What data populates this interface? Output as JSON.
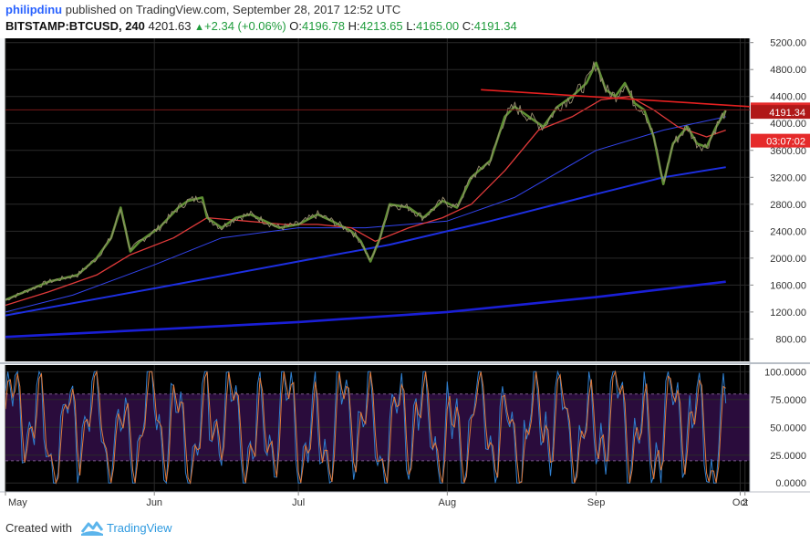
{
  "header": {
    "author": "philipdinu",
    "published_text": "published on TradingView.com, September 28, 2017 12:52 UTC",
    "symbol": "BITSTAMP:BTCUSD, 240",
    "last_price": "4201.63",
    "change": "+2.34 (+0.06%)",
    "o_label": "O:",
    "o_value": "4196.78",
    "h_label": "H:",
    "h_value": "4213.65",
    "l_label": "L:",
    "l_value": "4165.00",
    "c_label": "C:",
    "c_value": "4191.34"
  },
  "footer": {
    "created_with": "Created with",
    "brand": "TradingView"
  },
  "colors": {
    "background": "#000000",
    "grid": "#2a2a2a",
    "price": "#8b9a2e",
    "highlight": "#6fa83c",
    "ema_fast": "#e03a3a",
    "ma_blue_thin": "#3344ee",
    "ma_blue_mid": "#1d2fe0",
    "ma_blue_thick": "#1a1fd6",
    "trendline": "#e52020",
    "stoch_bg": "#2a0c3c",
    "stoch_k": "#2f7fcf",
    "stoch_d": "#e07a3a",
    "tag_red": "#e52a2a"
  },
  "chart_data": [
    {
      "type": "line",
      "panel": "price",
      "x_labels": [
        "May",
        "Jun",
        "Jul",
        "Aug",
        "Sep",
        "Oct",
        "2"
      ],
      "y_ticks": [
        800,
        1200,
        1600,
        2000,
        2400,
        2800,
        3200,
        3600,
        4000,
        4400,
        4800,
        5200
      ],
      "y_tick_labels": [
        "800.00",
        "1200.00",
        "1600.00",
        "2000.00",
        "2400.00",
        "2800.00",
        "3200.00",
        "3600.00",
        "4000.00",
        "4400.00",
        "4800.00",
        "5200.00"
      ],
      "ylim": [
        480,
        5250
      ],
      "x_range": [
        "2017-05-01",
        "2017-10-03"
      ],
      "series": [
        {
          "role": "price",
          "points": [
            [
              "2017-05-01",
              1380
            ],
            [
              "2017-05-05",
              1500
            ],
            [
              "2017-05-10",
              1650
            ],
            [
              "2017-05-13",
              1700
            ],
            [
              "2017-05-16",
              1750
            ],
            [
              "2017-05-20",
              2000
            ],
            [
              "2017-05-23",
              2300
            ],
            [
              "2017-05-25",
              2750
            ],
            [
              "2017-05-27",
              2100
            ],
            [
              "2017-05-29",
              2250
            ],
            [
              "2017-06-02",
              2450
            ],
            [
              "2017-06-06",
              2750
            ],
            [
              "2017-06-08",
              2850
            ],
            [
              "2017-06-11",
              2900
            ],
            [
              "2017-06-12",
              2600
            ],
            [
              "2017-06-15",
              2450
            ],
            [
              "2017-06-18",
              2600
            ],
            [
              "2017-06-21",
              2650
            ],
            [
              "2017-06-24",
              2550
            ],
            [
              "2017-06-27",
              2450
            ],
            [
              "2017-07-01",
              2500
            ],
            [
              "2017-07-05",
              2650
            ],
            [
              "2017-07-08",
              2550
            ],
            [
              "2017-07-12",
              2400
            ],
            [
              "2017-07-14",
              2250
            ],
            [
              "2017-07-16",
              1950
            ],
            [
              "2017-07-18",
              2300
            ],
            [
              "2017-07-20",
              2800
            ],
            [
              "2017-07-24",
              2750
            ],
            [
              "2017-07-27",
              2600
            ],
            [
              "2017-07-31",
              2850
            ],
            [
              "2017-08-03",
              2750
            ],
            [
              "2017-08-06",
              3200
            ],
            [
              "2017-08-10",
              3450
            ],
            [
              "2017-08-13",
              4100
            ],
            [
              "2017-08-15",
              4250
            ],
            [
              "2017-08-18",
              4100
            ],
            [
              "2017-08-21",
              3950
            ],
            [
              "2017-08-24",
              4250
            ],
            [
              "2017-08-27",
              4400
            ],
            [
              "2017-08-30",
              4600
            ],
            [
              "2017-09-01",
              4900
            ],
            [
              "2017-09-03",
              4500
            ],
            [
              "2017-09-05",
              4400
            ],
            [
              "2017-09-07",
              4600
            ],
            [
              "2017-09-09",
              4300
            ],
            [
              "2017-09-11",
              4200
            ],
            [
              "2017-09-13",
              3800
            ],
            [
              "2017-09-15",
              3100
            ],
            [
              "2017-09-17",
              3700
            ],
            [
              "2017-09-20",
              3950
            ],
            [
              "2017-09-22",
              3700
            ],
            [
              "2017-09-24",
              3650
            ],
            [
              "2017-09-26",
              3950
            ],
            [
              "2017-09-28",
              4191
            ]
          ]
        },
        {
          "role": "ema_fast",
          "points": [
            [
              "2017-05-01",
              1300
            ],
            [
              "2017-05-10",
              1500
            ],
            [
              "2017-05-20",
              1750
            ],
            [
              "2017-05-27",
              2050
            ],
            [
              "2017-06-05",
              2300
            ],
            [
              "2017-06-12",
              2600
            ],
            [
              "2017-06-20",
              2550
            ],
            [
              "2017-06-28",
              2500
            ],
            [
              "2017-07-05",
              2500
            ],
            [
              "2017-07-12",
              2450
            ],
            [
              "2017-07-17",
              2250
            ],
            [
              "2017-07-24",
              2450
            ],
            [
              "2017-07-31",
              2600
            ],
            [
              "2017-08-06",
              2800
            ],
            [
              "2017-08-13",
              3300
            ],
            [
              "2017-08-20",
              3900
            ],
            [
              "2017-08-27",
              4100
            ],
            [
              "2017-09-02",
              4350
            ],
            [
              "2017-09-08",
              4400
            ],
            [
              "2017-09-13",
              4200
            ],
            [
              "2017-09-18",
              3950
            ],
            [
              "2017-09-24",
              3800
            ],
            [
              "2017-09-28",
              3900
            ]
          ]
        },
        {
          "role": "ma_blue_thin",
          "points": [
            [
              "2017-05-01",
              1200
            ],
            [
              "2017-05-15",
              1450
            ],
            [
              "2017-06-01",
              1900
            ],
            [
              "2017-06-15",
              2300
            ],
            [
              "2017-07-01",
              2450
            ],
            [
              "2017-07-15",
              2450
            ],
            [
              "2017-08-01",
              2550
            ],
            [
              "2017-08-15",
              2900
            ],
            [
              "2017-09-01",
              3600
            ],
            [
              "2017-09-15",
              3900
            ],
            [
              "2017-09-28",
              4100
            ]
          ]
        },
        {
          "role": "ma_blue_mid",
          "points": [
            [
              "2017-05-01",
              1150
            ],
            [
              "2017-06-01",
              1550
            ],
            [
              "2017-07-01",
              1950
            ],
            [
              "2017-07-20",
              2200
            ],
            [
              "2017-08-10",
              2550
            ],
            [
              "2017-09-01",
              2950
            ],
            [
              "2017-09-15",
              3200
            ],
            [
              "2017-09-28",
              3350
            ]
          ]
        },
        {
          "role": "ma_blue_thick",
          "points": [
            [
              "2017-05-01",
              830
            ],
            [
              "2017-06-01",
              940
            ],
            [
              "2017-07-01",
              1050
            ],
            [
              "2017-08-01",
              1200
            ],
            [
              "2017-09-01",
              1420
            ],
            [
              "2017-09-28",
              1650
            ]
          ]
        },
        {
          "role": "trendline",
          "points": [
            [
              "2017-08-08",
              4500
            ],
            [
              "2017-10-03",
              4250
            ]
          ]
        }
      ],
      "labels": [
        {
          "value": 4201.63,
          "text": "4201.63",
          "role": "last_price"
        },
        {
          "value": 4191.34,
          "text": "4191.34",
          "role": "close"
        },
        {
          "value": 3900,
          "text": "03:07:02",
          "role": "countdown"
        }
      ]
    },
    {
      "type": "line",
      "panel": "stochastic",
      "y_ticks": [
        0,
        25,
        50,
        75,
        100
      ],
      "y_tick_labels": [
        "0.0000",
        "25.0000",
        "50.0000",
        "75.0000",
        "100.0000"
      ],
      "ylim": [
        -8,
        106
      ],
      "bands": [
        20,
        80
      ]
    }
  ]
}
